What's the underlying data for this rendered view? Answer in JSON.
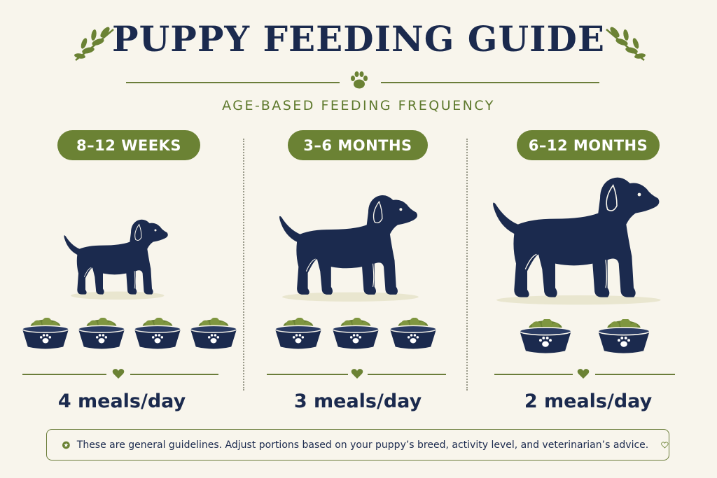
{
  "header": {
    "title": "PUPPY FEEDING GUIDE",
    "subtitle": "AGE-BASED FEEDING FREQUENCY"
  },
  "stages": [
    {
      "age": "8–12 WEEKS",
      "meals_label": "4 meals/day",
      "meals_per_day": 4
    },
    {
      "age": "3–6 MONTHS",
      "meals_label": "3 meals/day",
      "meals_per_day": 3
    },
    {
      "age": "6–12 MONTHS",
      "meals_label": "2 meals/day",
      "meals_per_day": 2
    }
  ],
  "footer": {
    "note": "These are general guidelines. Adjust portions based on your puppy’s breed, activity level, and veterinarian’s advice."
  },
  "colors": {
    "navy": "#1b2a4e",
    "olive": "#6b8234",
    "background": "#f8f5ec"
  },
  "icons": [
    "leaf-sprig-icon",
    "paw-icon",
    "star-icon",
    "heart-icon",
    "bowl-icon",
    "dog-silhouette-icon"
  ]
}
